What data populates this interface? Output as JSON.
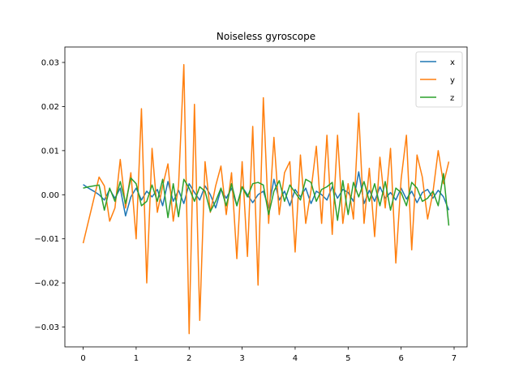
{
  "chart_data": {
    "type": "line",
    "title": "Noiseless gyroscope",
    "xlabel": "",
    "ylabel": "",
    "xlim": [
      -0.345,
      7.245
    ],
    "ylim": [
      -0.0345,
      0.0335
    ],
    "xticks": [
      0,
      1,
      2,
      3,
      4,
      5,
      6,
      7
    ],
    "yticks": [
      -0.03,
      -0.02,
      -0.01,
      0.0,
      0.01,
      0.02,
      0.03
    ],
    "ytick_labels": [
      "−0.03",
      "−0.02",
      "−0.01",
      "0.00",
      "0.01",
      "0.02",
      "0.03"
    ],
    "grid": false,
    "legend": {
      "placement": "top-right"
    },
    "x": [
      0.0,
      0.1,
      0.2,
      0.3,
      0.4,
      0.5,
      0.6,
      0.7,
      0.8,
      0.9,
      1.0,
      1.1,
      1.2,
      1.3,
      1.4,
      1.5,
      1.6,
      1.7,
      1.8,
      1.9,
      2.0,
      2.1,
      2.2,
      2.3,
      2.4,
      2.5,
      2.6,
      2.7,
      2.8,
      2.9,
      3.0,
      3.1,
      3.2,
      3.3,
      3.4,
      3.5,
      3.6,
      3.7,
      3.8,
      3.9,
      4.0,
      4.1,
      4.2,
      4.3,
      4.4,
      4.5,
      4.6,
      4.7,
      4.8,
      4.9,
      5.0,
      5.1,
      5.2,
      5.3,
      5.4,
      5.5,
      5.6,
      5.7,
      5.8,
      5.9,
      6.0,
      6.1,
      6.2,
      6.3,
      6.4,
      6.5,
      6.6,
      6.7,
      6.8,
      6.9
    ],
    "series": [
      {
        "name": "x",
        "color": "#1f77b4",
        "values": [
          0.0023,
          0.0015,
          0.0008,
          0.0,
          -0.0012,
          0.0012,
          -0.0008,
          0.0015,
          -0.0048,
          -0.0005,
          0.0015,
          -0.0012,
          0.0008,
          -0.0005,
          0.0012,
          -0.0025,
          0.003,
          -0.0015,
          0.001,
          -0.002,
          0.0025,
          0.0005,
          -0.0012,
          0.002,
          0.0,
          -0.003,
          0.0012,
          -0.0008,
          0.0015,
          -0.0025,
          0.0018,
          0.0,
          -0.0018,
          0.0,
          0.0008,
          -0.003,
          0.0035,
          -0.0012,
          0.0008,
          -0.0025,
          0.0012,
          -0.0005,
          0.0015,
          -0.002,
          0.0008,
          0.0,
          -0.0012,
          0.0018,
          -0.0008,
          0.0012,
          0.0005,
          -0.0015,
          0.0052,
          -0.002,
          0.001,
          -0.0015,
          0.0018,
          -0.0008,
          0.0005,
          -0.0012,
          0.0015,
          -0.001,
          0.0008,
          -0.0018,
          0.0005,
          0.0012,
          -0.0008,
          0.001,
          -0.0005,
          -0.0035
        ]
      },
      {
        "name": "y",
        "color": "#ff7f0e",
        "values": [
          -0.011,
          -0.006,
          -0.001,
          0.004,
          0.002,
          -0.006,
          -0.003,
          0.008,
          -0.003,
          0.005,
          -0.01,
          0.0195,
          -0.02,
          0.0105,
          -0.004,
          0.002,
          0.007,
          -0.006,
          0.002,
          0.0295,
          -0.0315,
          0.0205,
          -0.0285,
          0.0075,
          -0.004,
          0.002,
          0.0065,
          -0.0045,
          0.005,
          -0.0145,
          0.0075,
          -0.014,
          0.0155,
          -0.0205,
          0.022,
          -0.0065,
          0.013,
          -0.0045,
          0.005,
          0.0075,
          -0.013,
          0.009,
          -0.0065,
          0.001,
          0.011,
          -0.0065,
          0.0135,
          -0.009,
          0.0135,
          -0.0065,
          0.0025,
          -0.0055,
          0.0185,
          -0.0065,
          0.006,
          -0.0095,
          0.0085,
          -0.003,
          0.0105,
          -0.0155,
          0.0035,
          0.0135,
          -0.0125,
          0.009,
          0.004,
          -0.0055,
          0.0005,
          0.01,
          0.0025,
          0.0075
        ]
      },
      {
        "name": "z",
        "color": "#2ca02c",
        "values": [
          0.0015,
          0.0018,
          0.002,
          0.0022,
          -0.0035,
          0.0015,
          -0.0015,
          0.003,
          -0.002,
          0.0038,
          0.0025,
          -0.0025,
          -0.0015,
          0.0022,
          -0.0015,
          0.0035,
          -0.0052,
          0.0025,
          -0.005,
          0.0035,
          0.0015,
          -0.0015,
          0.0018,
          0.0008,
          -0.0038,
          -0.0015,
          0.0015,
          -0.0025,
          0.0025,
          -0.0025,
          0.0018,
          -0.0005,
          0.0025,
          0.0028,
          0.0022,
          -0.0045,
          0.0008,
          0.0032,
          -0.0015,
          0.0022,
          0.0005,
          -0.0012,
          0.0035,
          0.0028,
          -0.0015,
          0.0012,
          0.0018,
          0.0028,
          -0.0058,
          0.0032,
          -0.0045,
          0.0028,
          -0.0005,
          0.003,
          -0.0015,
          0.0025,
          -0.0025,
          0.003,
          -0.0035,
          0.0015,
          0.0005,
          -0.0025,
          0.0028,
          0.0015,
          -0.0015,
          -0.0008,
          0.0008,
          -0.0025,
          0.0048,
          -0.007
        ]
      }
    ]
  }
}
